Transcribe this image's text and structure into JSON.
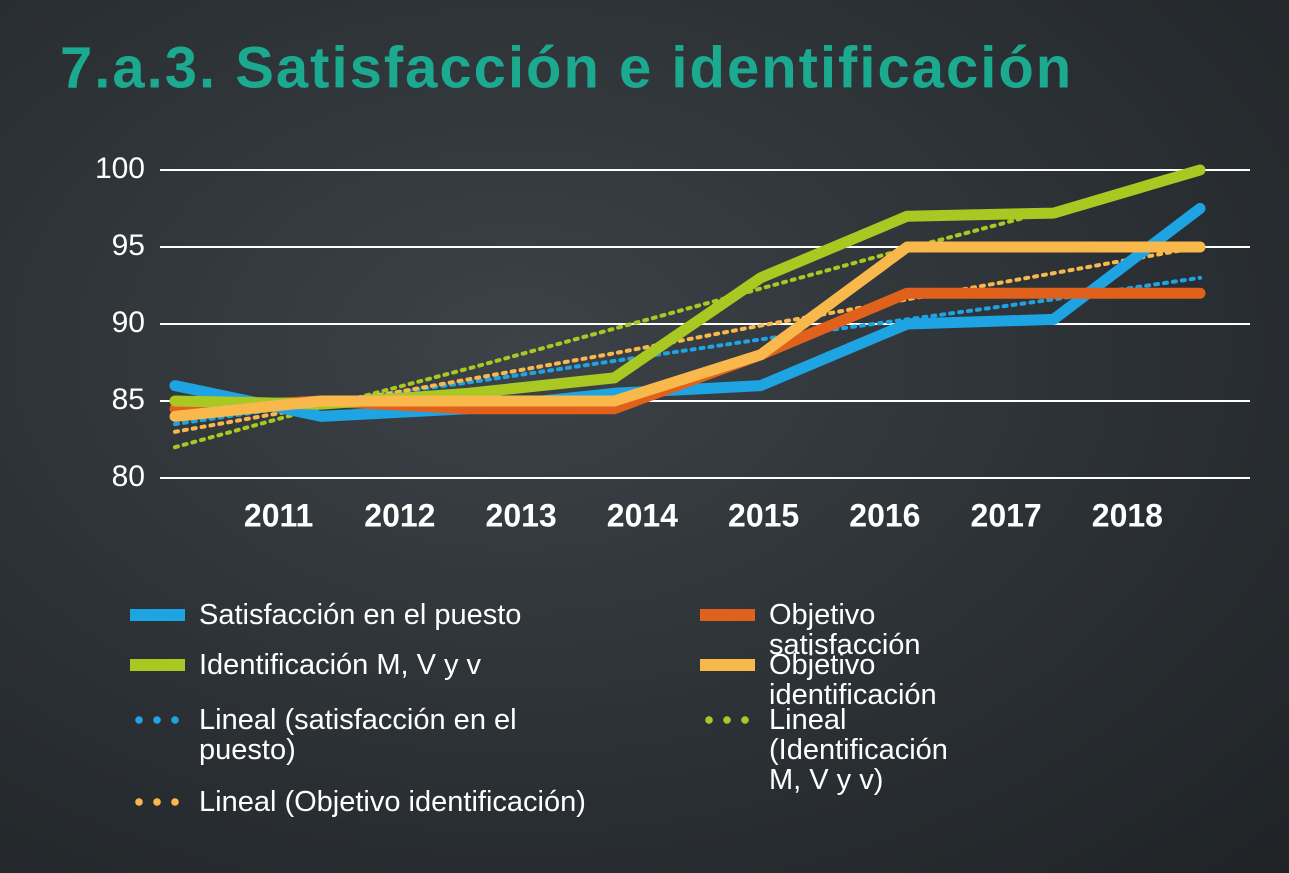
{
  "chart_data": {
    "type": "line",
    "title": "7.a.3. Satisfacción e identificación",
    "categories": [
      "2011",
      "2012",
      "2013",
      "2014",
      "2015",
      "2016",
      "2017",
      "2018"
    ],
    "series": [
      {
        "name": "Satisfacción en el puesto",
        "color": "#1ea3e3",
        "style": "solid",
        "values": [
          86,
          84,
          84.5,
          85.5,
          86,
          90,
          90.3,
          97.5
        ]
      },
      {
        "name": "Objetivo satisfacción",
        "color": "#e0611c",
        "style": "solid",
        "values": [
          84.5,
          85,
          84.5,
          84.5,
          88,
          92,
          92,
          92
        ]
      },
      {
        "name": "Identificación M, V y v",
        "color": "#a9c822",
        "style": "solid",
        "values": [
          85,
          84.8,
          85.5,
          86.5,
          93,
          97,
          97.2,
          100
        ]
      },
      {
        "name": "Objetivo identificación",
        "color": "#f8b84c",
        "style": "solid",
        "values": [
          84,
          85,
          85,
          85,
          88,
          95,
          95,
          95
        ]
      },
      {
        "name": "Lineal (satisfacción en el puesto)",
        "color": "#1ea3e3",
        "style": "dotted",
        "values": [
          83.5,
          84.9,
          86.2,
          87.6,
          89,
          90.3,
          91.6,
          93
        ]
      },
      {
        "name": "Lineal (Identificación M, V y v)",
        "color": "#a9c822",
        "style": "dotted",
        "values": [
          82,
          84.6,
          87.1,
          89.7,
          92.3,
          94.9,
          97.4,
          100
        ]
      },
      {
        "name": "Lineal (Objetivo identificación)",
        "color": "#f8b84c",
        "style": "dotted",
        "values": [
          83,
          84.7,
          86.4,
          88.1,
          89.9,
          91.6,
          93.3,
          95
        ]
      }
    ],
    "ylim": [
      80,
      100
    ],
    "yticks": [
      80,
      85,
      90,
      95,
      100
    ],
    "grid": true
  }
}
